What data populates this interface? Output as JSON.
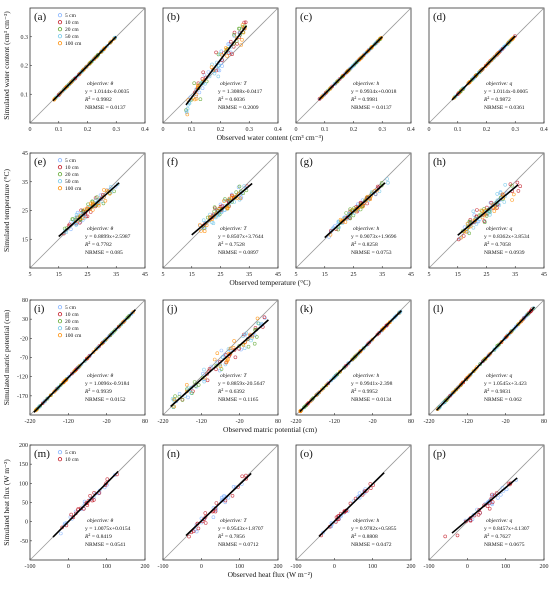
{
  "colors": {
    "5 cm": "#7fb0ff",
    "10 cm": "#c1121f",
    "20 cm": "#5aa52a",
    "50 cm": "#6ec6e8",
    "100 cm": "#ff8c00",
    "fit_line": "#000000",
    "one_to_one": "#999999"
  },
  "chart_data": [
    {
      "row": 1,
      "panel": "(a)",
      "type": "scatter",
      "xlabel": "Observed water content (cm³ cm⁻³)",
      "ylabel": "Simulated water content (cm³ cm⁻³)",
      "xlim": [
        0,
        0.4
      ],
      "ylim": [
        0,
        0.4
      ],
      "xticks": [
        0,
        0.1,
        0.2,
        0.3,
        0.4
      ],
      "yticks": [
        0.1,
        0.2,
        0.3
      ],
      "legend": [
        "5 cm",
        "10 cm",
        "20 cm",
        "50 cm",
        "100 cm"
      ],
      "objective": "θ",
      "equation": "y = 1.0144x-0.0035",
      "r2": "0.9982",
      "nrmse": "0.0137",
      "slope": 1.0144,
      "intercept": -0.0035,
      "fit_range": [
        0.08,
        0.3
      ]
    },
    {
      "row": 1,
      "panel": "(b)",
      "type": "scatter",
      "xlim": [
        0,
        0.4
      ],
      "ylim": [
        0,
        0.4
      ],
      "xticks": [
        0,
        0.1,
        0.2,
        0.3,
        0.4
      ],
      "objective": "T",
      "equation": "y = 1.3088x-0.0417",
      "r2": "0.6036",
      "nrmse": "0.2009",
      "slope": 1.3088,
      "intercept": -0.0417,
      "fit_range": [
        0.08,
        0.29
      ]
    },
    {
      "row": 1,
      "panel": "(c)",
      "type": "scatter",
      "xlim": [
        0,
        0.4
      ],
      "ylim": [
        0,
        0.4
      ],
      "xticks": [
        0,
        0.1,
        0.2,
        0.3,
        0.4
      ],
      "objective": "h",
      "equation": "y = 0.9934x+0.0018",
      "r2": "0.9981",
      "nrmse": "0.0137",
      "slope": 0.9934,
      "intercept": 0.0018,
      "fit_range": [
        0.08,
        0.3
      ]
    },
    {
      "row": 1,
      "panel": "(d)",
      "type": "scatter",
      "xlim": [
        0,
        0.4
      ],
      "ylim": [
        0,
        0.4
      ],
      "xticks": [
        0,
        0.1,
        0.2,
        0.3,
        0.4
      ],
      "objective": "q",
      "equation": "y = 1.0114x-0.0005",
      "r2": "0.9872",
      "nrmse": "0.0361",
      "slope": 1.0114,
      "intercept": -0.0005,
      "fit_range": [
        0.08,
        0.3
      ]
    },
    {
      "row": 2,
      "panel": "(e)",
      "type": "scatter",
      "xlabel": "Observed temperature (°C)",
      "ylabel": "Simulated temperature (°C)",
      "xlim": [
        5,
        45
      ],
      "ylim": [
        5,
        45
      ],
      "xticks": [
        5,
        15,
        25,
        35,
        45
      ],
      "yticks": [
        15,
        25,
        35,
        45
      ],
      "legend": [
        "5 cm",
        "10 cm",
        "20 cm",
        "50 cm",
        "100 cm"
      ],
      "objective": "θ",
      "equation": "y = 0.8899x+2.5987",
      "r2": "0.7782",
      "nrmse": "0.085",
      "slope": 0.8899,
      "intercept": 2.5987,
      "fit_range": [
        15,
        36
      ]
    },
    {
      "row": 2,
      "panel": "(f)",
      "type": "scatter",
      "xlim": [
        5,
        45
      ],
      "ylim": [
        5,
        45
      ],
      "xticks": [
        5,
        15,
        25,
        35,
        45
      ],
      "objective": "T",
      "equation": "y = 0.8507x+3.7644",
      "r2": "0.7528",
      "nrmse": "0.0897",
      "slope": 0.8507,
      "intercept": 3.7644,
      "fit_range": [
        15,
        36
      ]
    },
    {
      "row": 2,
      "panel": "(g)",
      "type": "scatter",
      "xlim": [
        5,
        45
      ],
      "ylim": [
        5,
        45
      ],
      "xticks": [
        5,
        15,
        25,
        35,
        45
      ],
      "objective": "h",
      "equation": "y = 0.9073x+1.9696",
      "r2": "0.8258",
      "nrmse": "0.0753",
      "slope": 0.9073,
      "intercept": 1.9696,
      "fit_range": [
        15,
        36
      ]
    },
    {
      "row": 2,
      "panel": "(h)",
      "type": "scatter",
      "xlim": [
        5,
        45
      ],
      "ylim": [
        5,
        45
      ],
      "xticks": [
        5,
        15,
        25,
        35,
        45
      ],
      "objective": "q",
      "equation": "y = 0.8362x+3.8534",
      "r2": "0.7058",
      "nrmse": "0.0939",
      "slope": 0.8362,
      "intercept": 3.8534,
      "fit_range": [
        15,
        36
      ]
    },
    {
      "row": 3,
      "panel": "(i)",
      "type": "scatter",
      "xlabel": "Observed matric potential (cm)",
      "ylabel": "Simulated matric potential (cm)",
      "xlim": [
        -220,
        80
      ],
      "ylim": [
        -220,
        80
      ],
      "xticks": [
        -220,
        -120,
        -20,
        80
      ],
      "yticks": [
        -170,
        -120,
        -70,
        -20,
        30,
        80
      ],
      "legend": [
        "5 cm",
        "10 cm",
        "20 cm",
        "50 cm",
        "100 cm"
      ],
      "objective": "θ",
      "equation": "y = 1.0096x-0.9184",
      "r2": "0.9939",
      "nrmse": "0.0152",
      "slope": 1.0096,
      "intercept": -0.9184,
      "fit_range": [
        -210,
        55
      ]
    },
    {
      "row": 3,
      "panel": "(j)",
      "type": "scatter",
      "xlim": [
        -220,
        80
      ],
      "ylim": [
        -220,
        80
      ],
      "xticks": [
        -220,
        -120,
        -20,
        80
      ],
      "objective": "T",
      "equation": "y = 0.8859x-20.5647",
      "r2": "0.6392",
      "nrmse": "0.1165",
      "slope": 0.8859,
      "intercept": -20.5647,
      "fit_range": [
        -200,
        55
      ]
    },
    {
      "row": 3,
      "panel": "(k)",
      "type": "scatter",
      "xlim": [
        -220,
        80
      ],
      "ylim": [
        -220,
        80
      ],
      "xticks": [
        -220,
        -120,
        -20,
        80
      ],
      "objective": "h",
      "equation": "y = 0.9941x-2.398",
      "r2": "0.9952",
      "nrmse": "0.0134",
      "slope": 0.9941,
      "intercept": -2.398,
      "fit_range": [
        -210,
        55
      ]
    },
    {
      "row": 3,
      "panel": "(l)",
      "type": "scatter",
      "xlim": [
        -220,
        80
      ],
      "ylim": [
        -220,
        80
      ],
      "xticks": [
        -220,
        -120,
        -20,
        80
      ],
      "objective": "q",
      "equation": "y = 1.0545x+3.423",
      "r2": "0.9831",
      "nrmse": "0.062",
      "slope": 1.0545,
      "intercept": 3.423,
      "fit_range": [
        -200,
        55
      ]
    },
    {
      "row": 4,
      "panel": "(m)",
      "type": "scatter",
      "xlabel": "Observed heat flux (W m⁻²)",
      "ylabel": "Simulated heat flux (W m⁻²)",
      "xlim": [
        -100,
        200
      ],
      "ylim": [
        -100,
        200
      ],
      "xticks": [
        -100,
        0,
        100,
        200
      ],
      "yticks": [
        -50,
        0,
        50,
        100,
        150,
        200
      ],
      "legend": [
        "5 cm",
        "10 cm"
      ],
      "objective": "θ",
      "equation": "y = 1.0075x+0.0154",
      "r2": "0.8419",
      "nrmse": "0.0541",
      "slope": 1.0075,
      "intercept": 0.0154,
      "fit_range": [
        -40,
        130
      ]
    },
    {
      "row": 4,
      "panel": "(n)",
      "type": "scatter",
      "xlim": [
        -100,
        200
      ],
      "ylim": [
        -100,
        200
      ],
      "xticks": [
        -100,
        0,
        100,
        200
      ],
      "objective": "T",
      "equation": "y = 0.9543x+1.8707",
      "r2": "0.7856",
      "nrmse": "0.0712",
      "slope": 0.9543,
      "intercept": 1.8707,
      "fit_range": [
        -40,
        130
      ]
    },
    {
      "row": 4,
      "panel": "(o)",
      "type": "scatter",
      "xlim": [
        -100,
        200
      ],
      "ylim": [
        -100,
        200
      ],
      "xticks": [
        -100,
        0,
        100,
        200
      ],
      "objective": "h",
      "equation": "y = 0.9782x+0.5855",
      "r2": "0.8808",
      "nrmse": "0.0472",
      "slope": 0.9782,
      "intercept": 0.5855,
      "fit_range": [
        -40,
        130
      ]
    },
    {
      "row": 4,
      "panel": "(p)",
      "type": "scatter",
      "xlim": [
        -100,
        200
      ],
      "ylim": [
        -100,
        200
      ],
      "xticks": [
        -100,
        0,
        100,
        200
      ],
      "objective": "q",
      "equation": "y = 0.8457x+4.1307",
      "r2": "0.7627",
      "nrmse": "0.0675",
      "slope": 0.8457,
      "intercept": 4.1307,
      "fit_range": [
        -40,
        130
      ]
    }
  ]
}
